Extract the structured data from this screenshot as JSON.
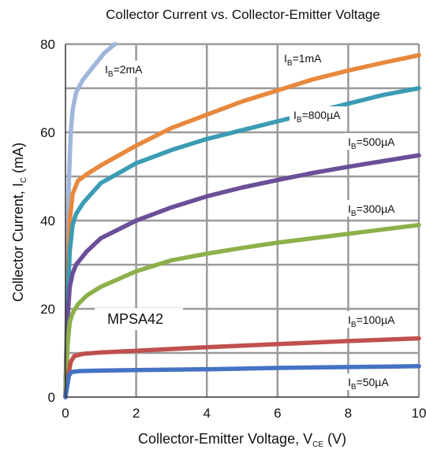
{
  "chart_data": {
    "type": "line",
    "title": "Collector Current vs. Collector-Emitter Voltage",
    "xlabel": {
      "main": "Collector-Emitter Voltage, V",
      "sub": "CE",
      "unit": " (V)"
    },
    "ylabel": {
      "main": "Collector Current, I",
      "sub": "C",
      "unit": " (mA)"
    },
    "xlim": [
      0,
      10
    ],
    "ylim": [
      0,
      80
    ],
    "xticks": [
      0,
      2,
      4,
      6,
      8,
      10
    ],
    "yticks": [
      0,
      20,
      40,
      60,
      80
    ],
    "grid": true,
    "annotation": "MPSA42",
    "series": [
      {
        "name": {
          "base": "I",
          "sub": "B",
          "val": "=2mA"
        },
        "color": "#9fb6dc",
        "x": [
          0,
          0.06,
          0.1,
          0.15,
          0.2,
          0.3,
          0.5,
          0.8,
          1.1,
          1.4
        ],
        "y": [
          0,
          30,
          50,
          60,
          65,
          69,
          72,
          75,
          78,
          80
        ]
      },
      {
        "name": {
          "base": "I",
          "sub": "B",
          "val": "=1mA"
        },
        "color": "#e8883c",
        "x": [
          0,
          0.06,
          0.12,
          0.2,
          0.35,
          0.6,
          1,
          2,
          3,
          4,
          5,
          6,
          7,
          8,
          9,
          10
        ],
        "y": [
          0,
          25,
          40,
          46,
          49,
          50.5,
          52.5,
          57,
          61,
          64,
          67,
          69.5,
          72,
          74,
          75.8,
          77.5
        ]
      },
      {
        "name": {
          "base": "I",
          "sub": "B",
          "val": "=800µA"
        },
        "color": "#3b9cb4",
        "x": [
          0,
          0.06,
          0.12,
          0.2,
          0.3,
          0.5,
          1,
          2,
          3,
          4,
          5,
          6,
          7,
          8,
          9,
          10
        ],
        "y": [
          0,
          22,
          33,
          39,
          41.5,
          44,
          48.5,
          53,
          56,
          58.5,
          60.5,
          62.5,
          64.5,
          66.5,
          68.5,
          70
        ]
      },
      {
        "name": {
          "base": "I",
          "sub": "B",
          "val": "=500µA"
        },
        "color": "#6a4f98",
        "x": [
          0,
          0.06,
          0.12,
          0.2,
          0.3,
          0.6,
          1,
          2,
          3,
          4,
          5,
          6,
          7,
          8,
          9,
          10
        ],
        "y": [
          0,
          18,
          25,
          28,
          30,
          33,
          36,
          40,
          43,
          45.5,
          47.5,
          49.2,
          50.8,
          52.2,
          53.5,
          54.8
        ]
      },
      {
        "name": {
          "base": "I",
          "sub": "B",
          "val": "=300µA"
        },
        "color": "#8db04a",
        "x": [
          0,
          0.06,
          0.12,
          0.2,
          0.35,
          0.6,
          1,
          2,
          3,
          4,
          5,
          6,
          7,
          8,
          9,
          10
        ],
        "y": [
          0,
          12,
          17,
          19,
          21,
          23,
          25,
          28.5,
          31,
          32.5,
          33.8,
          35,
          36,
          37,
          38,
          39
        ]
      },
      {
        "name": {
          "base": "I",
          "sub": "B",
          "val": "=100µA"
        },
        "color": "#c0504d",
        "x": [
          0,
          0.08,
          0.15,
          0.25,
          0.5,
          1,
          2,
          4,
          6,
          8,
          10
        ],
        "y": [
          0,
          5,
          8,
          9.3,
          9.8,
          10.1,
          10.5,
          11.3,
          12,
          12.7,
          13.3
        ]
      },
      {
        "name": {
          "base": "I",
          "sub": "B",
          "val": "=50µA"
        },
        "color": "#4472c4",
        "x": [
          0,
          0.06,
          0.1,
          0.18,
          0.4,
          1,
          2,
          4,
          6,
          8,
          10
        ],
        "y": [
          0,
          3,
          5,
          5.7,
          5.9,
          6,
          6.1,
          6.3,
          6.6,
          6.8,
          7
        ]
      }
    ]
  }
}
